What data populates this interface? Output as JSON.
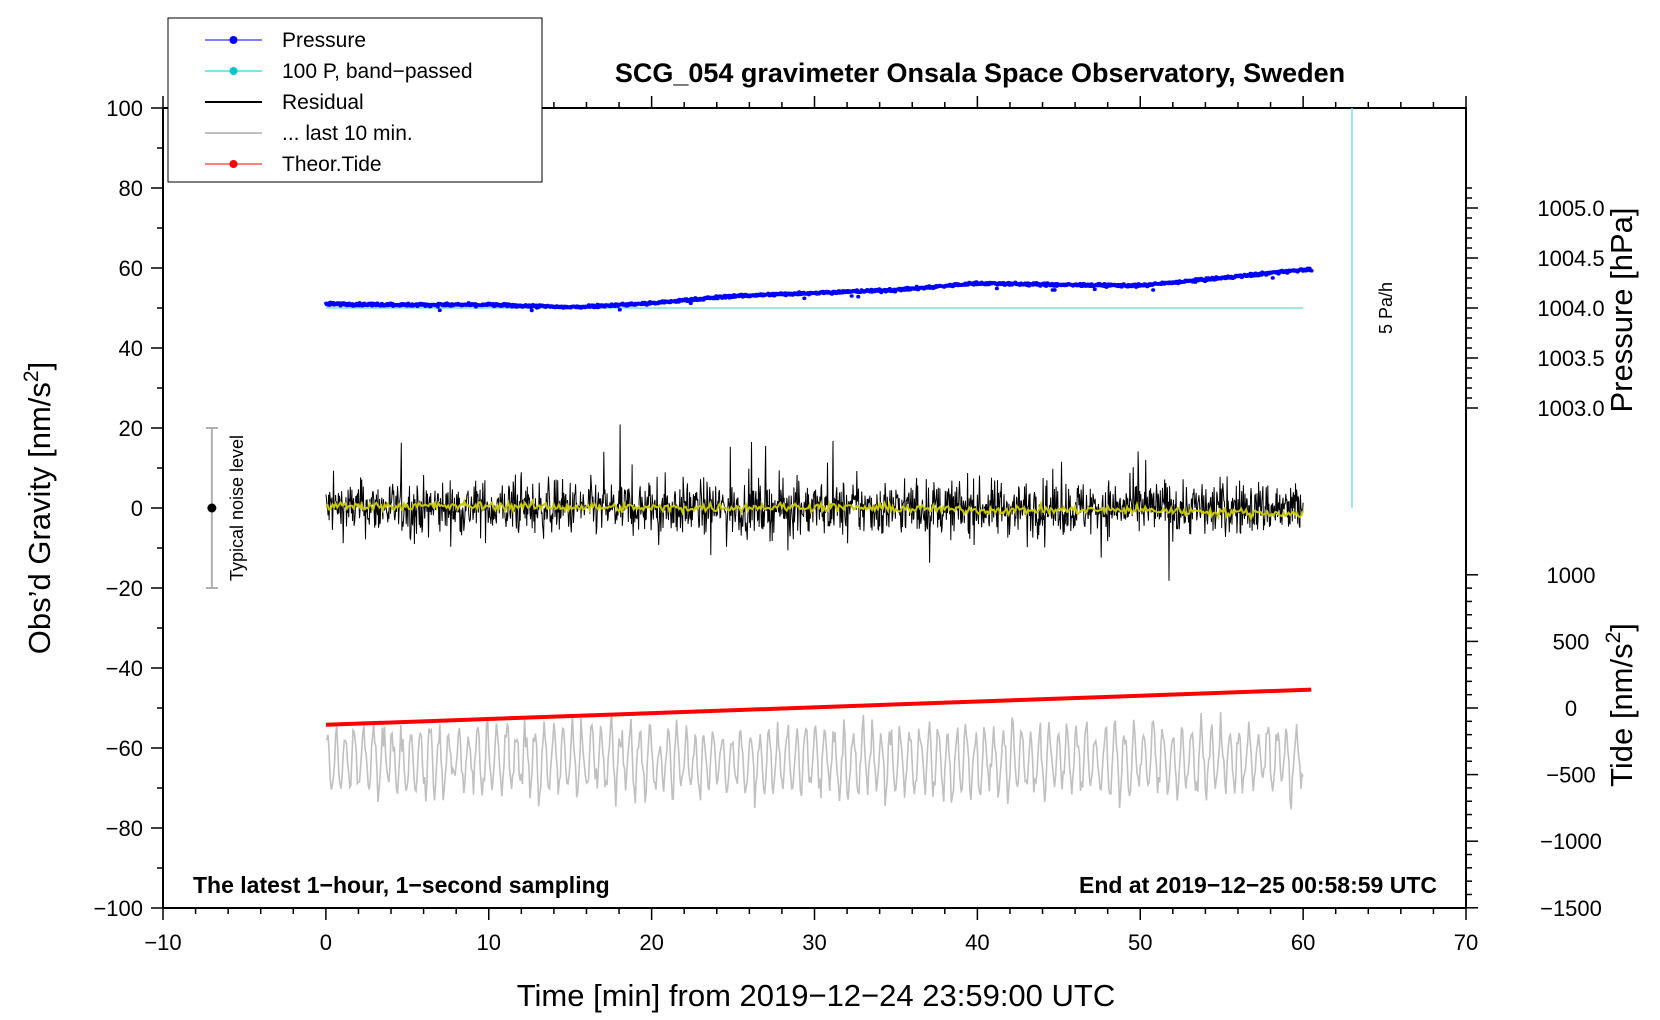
{
  "chart_data": {
    "type": "line",
    "title": "SCG_054 gravimeter Onsala Space Observatory, Sweden",
    "xlabel": "Time [min] from 2019−12−24 23:59:00 UTC",
    "ylabel_left": "Obs’d Gravity [nm/s",
    "ylabel_left_sup": "2",
    "ylabel_left_close": "]",
    "ylabel_right_pressure": "Pressure [hPa]",
    "ylabel_right_tide": "Tide [nm/s",
    "ylabel_right_tide_sup": "2",
    "ylabel_right_tide_close": "]",
    "xlim": [
      -10,
      70
    ],
    "ylim": [
      -100,
      100
    ],
    "x_ticks": [
      "−10",
      "0",
      "10",
      "20",
      "30",
      "40",
      "50",
      "60",
      "70"
    ],
    "x_tick_values": [
      -10,
      0,
      10,
      20,
      30,
      40,
      50,
      60,
      70
    ],
    "y_ticks": [
      "−100",
      "−80",
      "−60",
      "−40",
      "−20",
      "0",
      "20",
      "40",
      "60",
      "80",
      "100"
    ],
    "y_tick_values": [
      -100,
      -80,
      -60,
      -40,
      -20,
      0,
      20,
      40,
      60,
      80,
      100
    ],
    "pressure_ticks": [
      "1005.0",
      "1004.5",
      "1004.0",
      "1003.5",
      "1003.0"
    ],
    "pressure_tick_values": [
      1005.0,
      1004.5,
      1004.0,
      1003.5,
      1003.0
    ],
    "pressure_mapping": {
      "hpa_at_gravity_zero": 1002.0,
      "gravity_units_per_hpa": 25.0
    },
    "tide_ticks": [
      "1000",
      "500",
      "0",
      "−500",
      "−1000",
      "−1500"
    ],
    "tide_tick_values": [
      1000,
      500,
      0,
      -500,
      -1000,
      -1500
    ],
    "tide_mapping": {
      "gravity_at_tide_zero": -50.0,
      "gravity_units_per_1000": 33.3
    },
    "legend": [
      {
        "label": "Pressure",
        "color": "#0000ff",
        "marker": "dot"
      },
      {
        "label": "100 P, band−passed",
        "color": "#00c8c8",
        "marker": "dot"
      },
      {
        "label": "Residual",
        "color": "#000000",
        "marker": "none"
      },
      {
        "label": "... last 10 min.",
        "color": "#c0c0c0",
        "marker": "none"
      },
      {
        "label": "Theor.Tide",
        "color": "#ff0000",
        "marker": "dot"
      }
    ],
    "series": [
      {
        "name": "Pressure",
        "color": "#0000ff",
        "x": [
          0,
          5,
          10,
          15,
          20,
          25,
          30,
          35,
          40,
          45,
          50,
          55,
          60
        ],
        "values": [
          51.0,
          50.8,
          50.8,
          50.2,
          51.2,
          53.0,
          53.8,
          54.5,
          56.2,
          55.8,
          55.6,
          57.5,
          59.6
        ]
      },
      {
        "name": "100 P, band−passed",
        "color": "#00c8c8",
        "x": [
          0,
          60
        ],
        "values": [
          50,
          50
        ]
      },
      {
        "name": "Residual",
        "color": "#000000",
        "x_range": [
          0,
          60
        ],
        "amplitude_typical": 10,
        "amplitude_max": 21
      },
      {
        "name": "Residual smoothed",
        "color": "#c8c800",
        "x": [
          0,
          10,
          20,
          30,
          40,
          50,
          60
        ],
        "values": [
          0.5,
          0.5,
          0.0,
          0.3,
          -0.5,
          -0.5,
          -1.5
        ]
      },
      {
        "name": "... last 10 min.",
        "color": "#c0c0c0",
        "x_range": [
          0,
          60
        ],
        "center": -63,
        "amplitude_typical": 7,
        "amplitude_max": 17
      },
      {
        "name": "Theor.Tide",
        "color": "#ff0000",
        "x": [
          0,
          60.5
        ],
        "values": [
          -54.2,
          -45.4
        ]
      }
    ],
    "noise_bar": {
      "label": "Typical noise level",
      "x": -7,
      "center": 0,
      "range": [
        -20,
        20
      ]
    },
    "rate_bar": {
      "label": "5 Pa/h",
      "x": 63,
      "range": [
        0,
        100
      ],
      "color": "#80e0e0"
    },
    "annotations": {
      "bottom_left": "The latest 1−hour, 1−second sampling",
      "bottom_right": "End at 2019−12−25 00:58:59 UTC"
    }
  }
}
